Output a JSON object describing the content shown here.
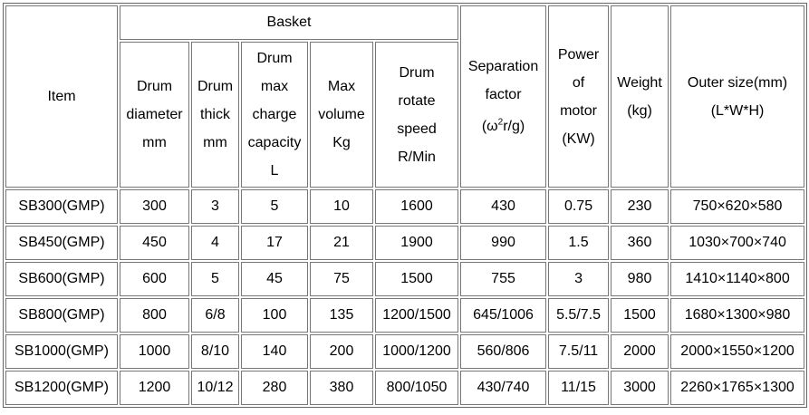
{
  "header": {
    "item": "Item",
    "group": "Basket",
    "columns": [
      {
        "lines": [
          "Drum",
          "diameter",
          "mm"
        ]
      },
      {
        "lines": [
          "Drum",
          "thick",
          "mm"
        ]
      },
      {
        "lines": [
          "Drum",
          "max",
          "charge",
          "capacity",
          "L"
        ]
      },
      {
        "lines": [
          "Max",
          "volume",
          "Kg"
        ]
      },
      {
        "lines": [
          "Drum",
          "rotate",
          "speed",
          "R/Min"
        ]
      },
      {
        "lines": [
          "Separation",
          "factor"
        ],
        "formula": [
          "(ω",
          "2",
          "r/g)"
        ]
      },
      {
        "lines": [
          "Power",
          "of",
          "motor",
          "(KW)"
        ]
      },
      {
        "lines": [
          "Weight",
          "(kg)"
        ]
      },
      {
        "lines": [
          "Outer size(mm)",
          "(L*W*H)"
        ]
      }
    ]
  },
  "table": {
    "rows": [
      [
        "SB300(GMP)",
        "300",
        "3",
        "5",
        "10",
        "1600",
        "430",
        "0.75",
        "230",
        "750×620×580"
      ],
      [
        "SB450(GMP)",
        "450",
        "4",
        "17",
        "21",
        "1900",
        "990",
        "1.5",
        "360",
        "1030×700×740"
      ],
      [
        "SB600(GMP)",
        "600",
        "5",
        "45",
        "75",
        "1500",
        "755",
        "3",
        "980",
        "1410×1140×800"
      ],
      [
        "SB800(GMP)",
        "800",
        "6/8",
        "100",
        "135",
        "1200/1500",
        "645/1006",
        "5.5/7.5",
        "1500",
        "1680×1300×980"
      ],
      [
        "SB1000(GMP)",
        "1000",
        "8/10",
        "140",
        "200",
        "1000/1200",
        "560/806",
        "7.5/11",
        "2000",
        "2000×1550×1200"
      ],
      [
        "SB1200(GMP)",
        "1200",
        "10/12",
        "280",
        "380",
        "800/1050",
        "430/740",
        "11/15",
        "3000",
        "2260×1765×1300"
      ]
    ]
  }
}
